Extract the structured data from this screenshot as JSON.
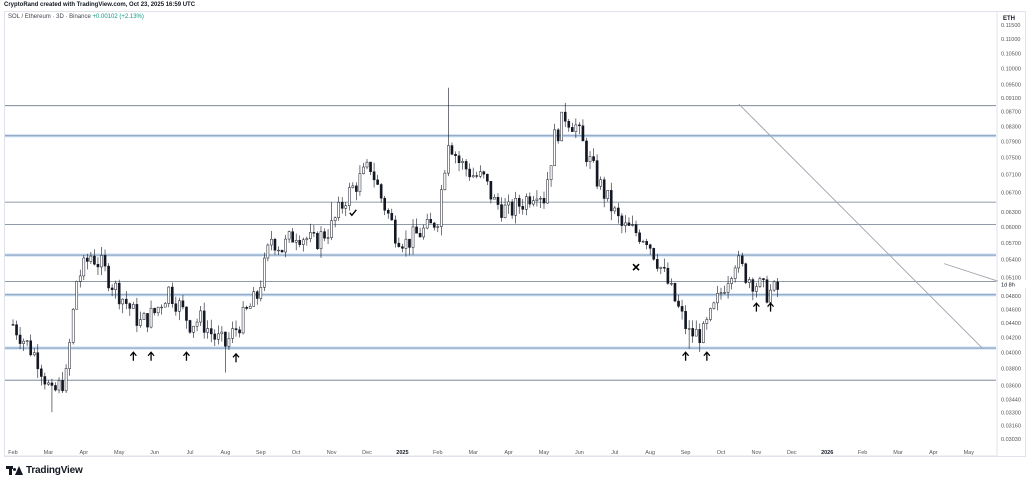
{
  "header": {
    "credit": "CryptoRand created with TradingView.com, Oct 23, 2025 16:59 UTC",
    "symbol": "SOL / Ethereum · 3D · Binance",
    "change": "+0.00102 (+2.13%)"
  },
  "footer": {
    "brand": "TradingView"
  },
  "chart_data": {
    "type": "candlestick",
    "symbol": "SOL / Ethereum",
    "interval": "3D",
    "exchange": "Binance",
    "quote_currency": "ETH",
    "scale": "log",
    "countdown_label": "1d 8h",
    "ylim": [
      0.0296,
      0.12
    ],
    "y_ticks": [
      "0.11500",
      "0.11000",
      "0.10500",
      "0.10000",
      "0.09500",
      "0.09100",
      "0.08700",
      "0.08300",
      "0.07900",
      "0.07500",
      "0.07100",
      "0.06700",
      "0.06300",
      "0.06000",
      "0.05700",
      "0.05400",
      "0.05100",
      "0.04800",
      "0.04600",
      "0.04400",
      "0.04200",
      "0.04000",
      "0.03800",
      "0.03600",
      "0.03440",
      "0.03300",
      "0.03160",
      "0.03030"
    ],
    "x_labels": [
      "Feb",
      "Mar",
      "Apr",
      "May",
      "Jun",
      "Jul",
      "Aug",
      "Sep",
      "Oct",
      "Nov",
      "Dec",
      "2025",
      "Feb",
      "Mar",
      "Apr",
      "May",
      "Jun",
      "Jul",
      "Aug",
      "Sep",
      "Oct",
      "Nov",
      "Dec",
      "2026",
      "Feb",
      "Mar",
      "Apr",
      "May"
    ],
    "horizontal_levels": [
      {
        "price": 0.0887,
        "style": "line"
      },
      {
        "price": 0.0805,
        "style": "zone"
      },
      {
        "price": 0.065,
        "style": "line"
      },
      {
        "price": 0.0605,
        "style": "line"
      },
      {
        "price": 0.0548,
        "style": "zone"
      },
      {
        "price": 0.0503,
        "style": "line"
      },
      {
        "price": 0.0482,
        "style": "zone"
      },
      {
        "price": 0.0406,
        "style": "zone"
      },
      {
        "price": 0.0366,
        "style": "line"
      }
    ],
    "trendlines": [
      {
        "from": {
          "x": 20.5,
          "y": 0.0892
        },
        "to": {
          "x": 27.4,
          "y": 0.0405
        }
      },
      {
        "from": {
          "x": 26.3,
          "y": 0.0533
        },
        "to": {
          "x": 28.4,
          "y": 0.0493
        }
      }
    ],
    "annotations": [
      {
        "mark": "up-arrow",
        "x": 3.4,
        "y": 0.0396
      },
      {
        "mark": "up-arrow",
        "x": 3.9,
        "y": 0.0396
      },
      {
        "mark": "up-arrow",
        "x": 4.9,
        "y": 0.0396
      },
      {
        "mark": "up-arrow",
        "x": 6.3,
        "y": 0.0394
      },
      {
        "mark": "checkmark",
        "x": 9.6,
        "y": 0.0628
      },
      {
        "mark": "cross",
        "x": 17.6,
        "y": 0.0527
      },
      {
        "mark": "up-arrow",
        "x": 19.0,
        "y": 0.0396
      },
      {
        "mark": "up-arrow",
        "x": 19.6,
        "y": 0.0396
      },
      {
        "mark": "up-arrow",
        "x": 21.0,
        "y": 0.0464
      },
      {
        "mark": "up-arrow",
        "x": 21.4,
        "y": 0.0464
      }
    ],
    "key_points": [
      {
        "x": 0.0,
        "y": 0.0438
      },
      {
        "x": 0.7,
        "y": 0.0392
      },
      {
        "x": 1.1,
        "y": 0.0348
      },
      {
        "x": 1.5,
        "y": 0.037
      },
      {
        "x": 1.8,
        "y": 0.0505
      },
      {
        "x": 2.2,
        "y": 0.0548
      },
      {
        "x": 2.5,
        "y": 0.053
      },
      {
        "x": 2.8,
        "y": 0.05
      },
      {
        "x": 3.2,
        "y": 0.047
      },
      {
        "x": 3.6,
        "y": 0.044
      },
      {
        "x": 4.0,
        "y": 0.0455
      },
      {
        "x": 4.4,
        "y": 0.049
      },
      {
        "x": 4.7,
        "y": 0.0465
      },
      {
        "x": 5.0,
        "y": 0.044
      },
      {
        "x": 5.3,
        "y": 0.0445
      },
      {
        "x": 5.7,
        "y": 0.042
      },
      {
        "x": 6.0,
        "y": 0.041
      },
      {
        "x": 6.4,
        "y": 0.044
      },
      {
        "x": 6.9,
        "y": 0.048
      },
      {
        "x": 7.3,
        "y": 0.058
      },
      {
        "x": 7.6,
        "y": 0.056
      },
      {
        "x": 8.0,
        "y": 0.059
      },
      {
        "x": 8.5,
        "y": 0.057
      },
      {
        "x": 9.0,
        "y": 0.06
      },
      {
        "x": 9.4,
        "y": 0.066
      },
      {
        "x": 9.8,
        "y": 0.07
      },
      {
        "x": 10.1,
        "y": 0.073
      },
      {
        "x": 10.4,
        "y": 0.066
      },
      {
        "x": 10.8,
        "y": 0.059
      },
      {
        "x": 11.1,
        "y": 0.057
      },
      {
        "x": 11.4,
        "y": 0.0585
      },
      {
        "x": 11.8,
        "y": 0.06
      },
      {
        "x": 12.0,
        "y": 0.062
      },
      {
        "x": 12.3,
        "y": 0.08
      },
      {
        "x": 12.6,
        "y": 0.074
      },
      {
        "x": 13.0,
        "y": 0.071
      },
      {
        "x": 13.3,
        "y": 0.07
      },
      {
        "x": 13.6,
        "y": 0.065
      },
      {
        "x": 14.0,
        "y": 0.063
      },
      {
        "x": 14.4,
        "y": 0.065
      },
      {
        "x": 14.8,
        "y": 0.068
      },
      {
        "x": 15.0,
        "y": 0.066
      },
      {
        "x": 15.3,
        "y": 0.08
      },
      {
        "x": 15.6,
        "y": 0.086
      },
      {
        "x": 15.9,
        "y": 0.083
      },
      {
        "x": 16.2,
        "y": 0.076
      },
      {
        "x": 16.5,
        "y": 0.07
      },
      {
        "x": 16.9,
        "y": 0.064
      },
      {
        "x": 17.2,
        "y": 0.06
      },
      {
        "x": 17.6,
        "y": 0.059
      },
      {
        "x": 17.9,
        "y": 0.058
      },
      {
        "x": 18.2,
        "y": 0.054
      },
      {
        "x": 18.5,
        "y": 0.05
      },
      {
        "x": 18.8,
        "y": 0.046
      },
      {
        "x": 19.1,
        "y": 0.0425
      },
      {
        "x": 19.5,
        "y": 0.0425
      },
      {
        "x": 19.8,
        "y": 0.046
      },
      {
        "x": 20.1,
        "y": 0.05
      },
      {
        "x": 20.4,
        "y": 0.054
      },
      {
        "x": 20.7,
        "y": 0.0515
      },
      {
        "x": 21.0,
        "y": 0.05
      },
      {
        "x": 21.3,
        "y": 0.0485
      },
      {
        "x": 21.6,
        "y": 0.049
      }
    ],
    "last": 0.0489
  }
}
